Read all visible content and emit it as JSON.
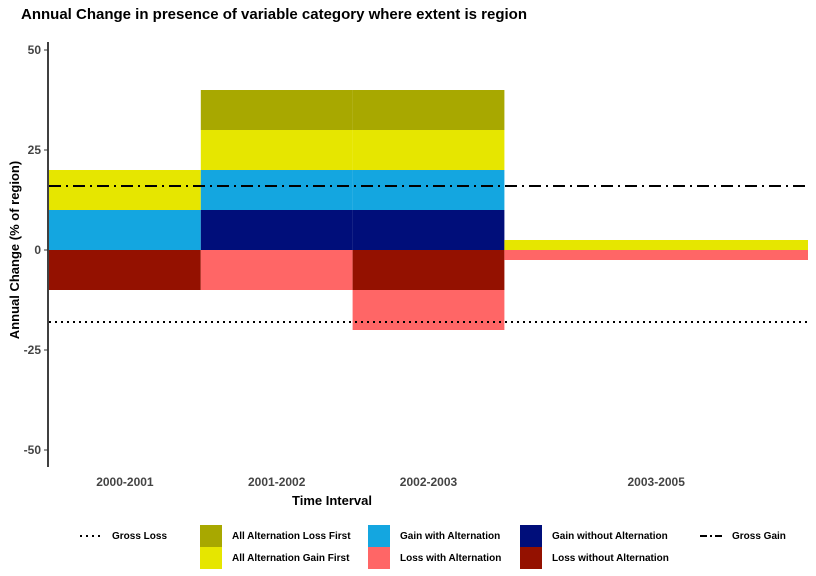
{
  "chart_data": {
    "type": "bar",
    "stacked": true,
    "title": "Annual Change in presence of variable category where extent is region",
    "xlabel": "Time Interval",
    "ylabel": "Annual Change (% of region)",
    "ylim": [
      -55,
      55
    ],
    "yticks": [
      -50,
      -25,
      0,
      25,
      50
    ],
    "grid": false,
    "legend_position": "bottom",
    "intervals": [
      {
        "label": "2000-2001",
        "start": 2000,
        "end": 2001
      },
      {
        "label": "2001-2002",
        "start": 2001,
        "end": 2002
      },
      {
        "label": "2002-2003",
        "start": 2002,
        "end": 2003
      },
      {
        "label": "2003-2005",
        "start": 2003,
        "end": 2005
      }
    ],
    "series": [
      {
        "name": "Gain without Alternation",
        "sign": "gain",
        "color": "#000E7A",
        "values": [
          0,
          10,
          10,
          0
        ]
      },
      {
        "name": "Gain with Alternation",
        "sign": "gain",
        "color": "#14A6E0",
        "values": [
          10,
          10,
          10,
          0
        ]
      },
      {
        "name": "All Alternation Gain First",
        "sign": "gain",
        "color": "#E6E600",
        "values": [
          10,
          10,
          10,
          2.5
        ]
      },
      {
        "name": "All Alternation Loss First",
        "sign": "gain",
        "color": "#A8A800",
        "values": [
          0,
          10,
          10,
          0
        ]
      },
      {
        "name": "Loss without Alternation",
        "sign": "loss",
        "color": "#941100",
        "values": [
          10,
          0,
          10,
          0
        ]
      },
      {
        "name": "Loss with Alternation",
        "sign": "loss",
        "color": "#FF6666",
        "values": [
          0,
          10,
          10,
          2.5
        ]
      }
    ],
    "reference_lines": [
      {
        "name": "Gross Gain",
        "value": 16,
        "style": "dashdot"
      },
      {
        "name": "Gross Loss",
        "value": -18,
        "style": "dotted"
      }
    ],
    "legend": [
      {
        "name": "Gross Loss",
        "kind": "dotted"
      },
      {
        "name": "All Alternation Loss First",
        "kind": "fill",
        "color": "#A8A800"
      },
      {
        "name": "Gain with Alternation",
        "kind": "fill",
        "color": "#14A6E0"
      },
      {
        "name": "Gain without Alternation",
        "kind": "fill",
        "color": "#000E7A"
      },
      {
        "name": "Gross Gain",
        "kind": "dashdot"
      },
      {
        "name": "All Alternation Gain First",
        "kind": "fill",
        "color": "#E6E600"
      },
      {
        "name": "Loss with Alternation",
        "kind": "fill",
        "color": "#FF6666"
      },
      {
        "name": "Loss without Alternation",
        "kind": "fill",
        "color": "#941100"
      }
    ]
  }
}
